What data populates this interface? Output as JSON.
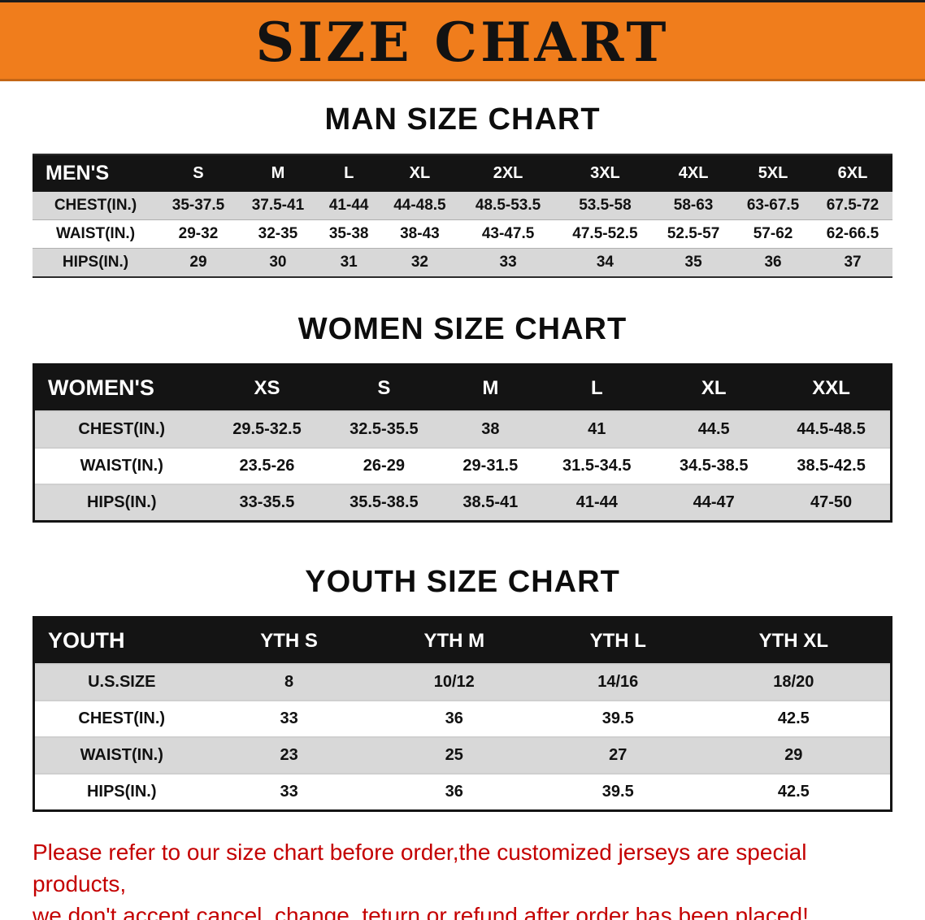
{
  "banner": {
    "title": "SIZE CHART",
    "bg_color": "#F07D1C"
  },
  "chart_data": [
    {
      "type": "table",
      "title": "MAN SIZE CHART",
      "corner_label": "MEN'S",
      "style": "plain",
      "columns": [
        "S",
        "M",
        "L",
        "XL",
        "2XL",
        "3XL",
        "4XL",
        "5XL",
        "6XL"
      ],
      "rows": [
        {
          "label": "CHEST(IN.)",
          "values": [
            "35-37.5",
            "37.5-41",
            "41-44",
            "44-48.5",
            "48.5-53.5",
            "53.5-58",
            "58-63",
            "63-67.5",
            "67.5-72"
          ]
        },
        {
          "label": "WAIST(IN.)",
          "values": [
            "29-32",
            "32-35",
            "35-38",
            "38-43",
            "43-47.5",
            "47.5-52.5",
            "52.5-57",
            "57-62",
            "62-66.5"
          ]
        },
        {
          "label": "HIPS(IN.)",
          "values": [
            "29",
            "30",
            "31",
            "32",
            "33",
            "34",
            "35",
            "36",
            "37"
          ]
        }
      ]
    },
    {
      "type": "table",
      "title": "WOMEN SIZE CHART",
      "corner_label": "WOMEN'S",
      "style": "boxed",
      "columns": [
        "XS",
        "S",
        "M",
        "L",
        "XL",
        "XXL"
      ],
      "rows": [
        {
          "label": "CHEST(IN.)",
          "values": [
            "29.5-32.5",
            "32.5-35.5",
            "38",
            "41",
            "44.5",
            "44.5-48.5"
          ]
        },
        {
          "label": "WAIST(IN.)",
          "values": [
            "23.5-26",
            "26-29",
            "29-31.5",
            "31.5-34.5",
            "34.5-38.5",
            "38.5-42.5"
          ]
        },
        {
          "label": "HIPS(IN.)",
          "values": [
            "33-35.5",
            "35.5-38.5",
            "38.5-41",
            "41-44",
            "44-47",
            "47-50"
          ]
        }
      ]
    },
    {
      "type": "table",
      "title": "YOUTH SIZE CHART",
      "corner_label": "YOUTH",
      "style": "boxed",
      "columns": [
        "YTH S",
        "YTH M",
        "YTH L",
        "YTH XL"
      ],
      "rows": [
        {
          "label": "U.S.SIZE",
          "values": [
            "8",
            "10/12",
            "14/16",
            "18/20"
          ]
        },
        {
          "label": "CHEST(IN.)",
          "values": [
            "33",
            "36",
            "39.5",
            "42.5"
          ]
        },
        {
          "label": "WAIST(IN.)",
          "values": [
            "23",
            "25",
            "27",
            "29"
          ]
        },
        {
          "label": "HIPS(IN.)",
          "values": [
            "33",
            "36",
            "39.5",
            "42.5"
          ]
        }
      ]
    }
  ],
  "footer": {
    "color": "#c40000",
    "lines": [
      "Please refer to our size chart before order,the customized jerseys are special products,",
      "we don't accept cancel, change, teturn or refund after order has been placed!"
    ]
  }
}
